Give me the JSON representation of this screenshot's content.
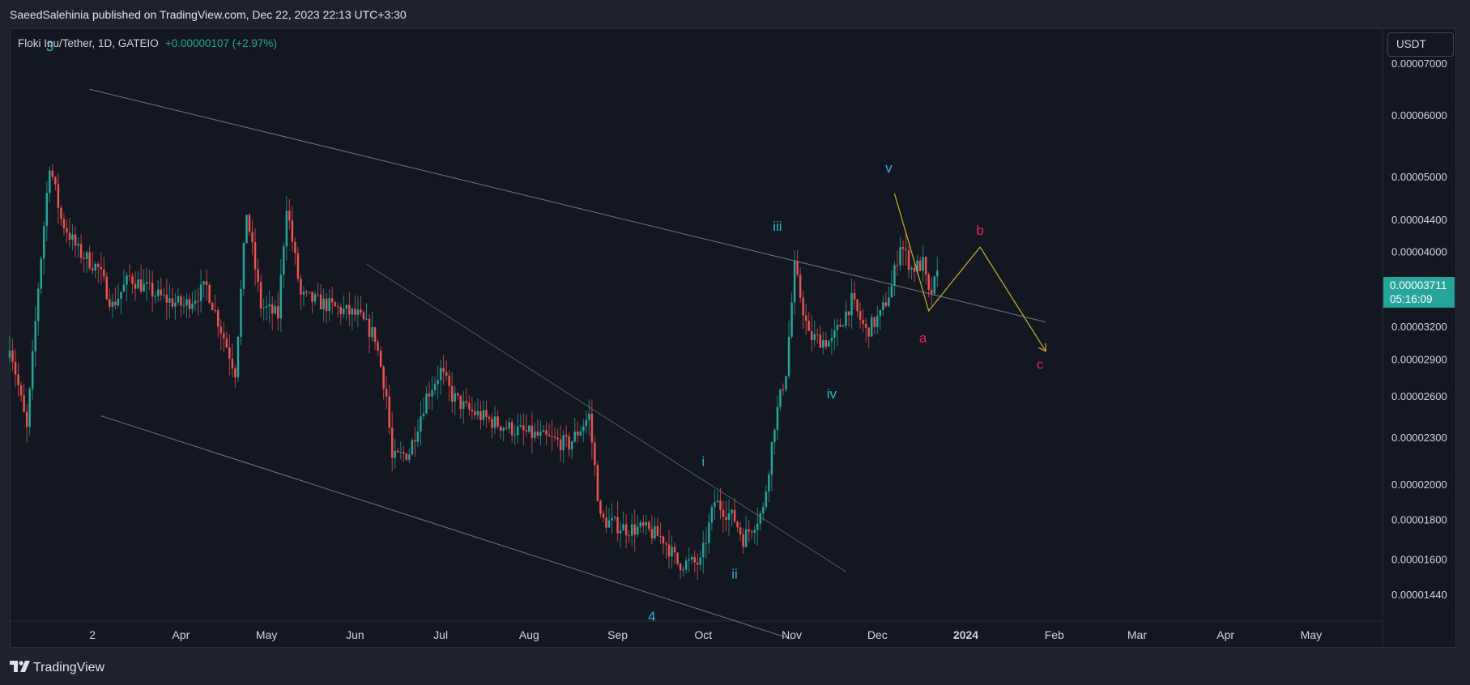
{
  "header": {
    "publisher_line": "SaeedSalehinia published on TradingView.com, Dec 22, 2023 22:13 UTC+3:30"
  },
  "legend": {
    "symbol": "Floki Inu/Tether, 1D, GATEIO",
    "change": "+0.00000107 (+2.97%)"
  },
  "currency_button": "USDT",
  "last_price": {
    "value": "0.00003711",
    "countdown": "05:16:09"
  },
  "footer": {
    "brand": "TradingView"
  },
  "colors": {
    "background": "#131722",
    "up": "#26a69a",
    "down": "#ef5350",
    "wave_label": "#2fb5cf",
    "abc_label": "#e91e63",
    "projection": "#c9b12f",
    "trendline": "#9598a1"
  },
  "chart_data": {
    "type": "candlestick",
    "symbol": "Floki Inu/Tether",
    "interval": "1D",
    "exchange": "GATEIO",
    "scale": "log",
    "ylim": [
      1.33e-05,
      7.75e-05
    ],
    "y_ticks": [
      {
        "value": 7e-05,
        "label": "0.00007000"
      },
      {
        "value": 6e-05,
        "label": "0.00006000"
      },
      {
        "value": 5e-05,
        "label": "0.00005000"
      },
      {
        "value": 4.4e-05,
        "label": "0.00004400"
      },
      {
        "value": 4e-05,
        "label": "0.00004000"
      },
      {
        "value": 3.2e-05,
        "label": "0.00003200"
      },
      {
        "value": 2.9e-05,
        "label": "0.00002900"
      },
      {
        "value": 2.6e-05,
        "label": "0.00002600"
      },
      {
        "value": 2.3e-05,
        "label": "0.00002300"
      },
      {
        "value": 2e-05,
        "label": "0.00002000"
      },
      {
        "value": 1.8e-05,
        "label": "0.00001800"
      },
      {
        "value": 1.6e-05,
        "label": "0.00001600"
      },
      {
        "value": 1.44e-05,
        "label": "0.00001440"
      }
    ],
    "x_start": "2023-01-31",
    "x_end": "2024-05-26",
    "x_ticks": [
      {
        "date": "2023-03-01",
        "label": "2"
      },
      {
        "date": "2023-04-01",
        "label": "Apr"
      },
      {
        "date": "2023-05-01",
        "label": "May"
      },
      {
        "date": "2023-06-01",
        "label": "Jun"
      },
      {
        "date": "2023-07-01",
        "label": "Jul"
      },
      {
        "date": "2023-08-01",
        "label": "Aug"
      },
      {
        "date": "2023-09-01",
        "label": "Sep"
      },
      {
        "date": "2023-10-01",
        "label": "Oct"
      },
      {
        "date": "2023-11-01",
        "label": "Nov"
      },
      {
        "date": "2023-12-01",
        "label": "Dec"
      },
      {
        "date": "2024-01-01",
        "label": "2024",
        "bold": true
      },
      {
        "date": "2024-02-01",
        "label": "Feb"
      },
      {
        "date": "2024-03-01",
        "label": "Mar"
      },
      {
        "date": "2024-04-01",
        "label": "Apr"
      },
      {
        "date": "2024-05-01",
        "label": "May"
      }
    ],
    "series_keypoints": [
      [
        "2023-01-31",
        3.05e-05
      ],
      [
        "2023-02-06",
        2.35e-05
      ],
      [
        "2023-02-10",
        3.6e-05
      ],
      [
        "2023-02-14",
        5.2e-05
      ],
      [
        "2023-02-18",
        4.4e-05
      ],
      [
        "2023-02-24",
        4e-05
      ],
      [
        "2023-03-03",
        3.8e-05
      ],
      [
        "2023-03-08",
        3.4e-05
      ],
      [
        "2023-03-14",
        3.7e-05
      ],
      [
        "2023-03-24",
        3.5e-05
      ],
      [
        "2023-04-02",
        3.4e-05
      ],
      [
        "2023-04-10",
        3.6e-05
      ],
      [
        "2023-04-20",
        2.8e-05
      ],
      [
        "2023-04-24",
        4.5e-05
      ],
      [
        "2023-04-29",
        3.4e-05
      ],
      [
        "2023-05-05",
        3.3e-05
      ],
      [
        "2023-05-08",
        4.6e-05
      ],
      [
        "2023-05-13",
        3.5e-05
      ],
      [
        "2023-05-23",
        3.4e-05
      ],
      [
        "2023-06-02",
        3.3e-05
      ],
      [
        "2023-06-08",
        3.1e-05
      ],
      [
        "2023-06-12",
        2.6e-05
      ],
      [
        "2023-06-14",
        2.15e-05
      ],
      [
        "2023-06-20",
        2.2e-05
      ],
      [
        "2023-06-26",
        2.6e-05
      ],
      [
        "2023-07-01",
        2.8e-05
      ],
      [
        "2023-07-05",
        2.6e-05
      ],
      [
        "2023-07-10",
        2.5e-05
      ],
      [
        "2023-07-20",
        2.4e-05
      ],
      [
        "2023-07-27",
        2.35e-05
      ],
      [
        "2023-08-05",
        2.3e-05
      ],
      [
        "2023-08-15",
        2.25e-05
      ],
      [
        "2023-08-22",
        2.45e-05
      ],
      [
        "2023-08-26",
        1.8e-05
      ],
      [
        "2023-09-04",
        1.75e-05
      ],
      [
        "2023-09-10",
        1.75e-05
      ],
      [
        "2023-09-17",
        1.7e-05
      ],
      [
        "2023-09-22",
        1.58e-05
      ],
      [
        "2023-09-30",
        1.58e-05
      ],
      [
        "2023-10-05",
        1.9e-05
      ],
      [
        "2023-10-12",
        1.8e-05
      ],
      [
        "2023-10-15",
        1.7e-05
      ],
      [
        "2023-10-22",
        1.85e-05
      ],
      [
        "2023-10-26",
        2.4e-05
      ],
      [
        "2023-10-30",
        2.8e-05
      ],
      [
        "2023-11-02",
        3.8e-05
      ],
      [
        "2023-11-07",
        3.1e-05
      ],
      [
        "2023-11-15",
        3.05e-05
      ],
      [
        "2023-11-22",
        3.45e-05
      ],
      [
        "2023-11-27",
        3.15e-05
      ],
      [
        "2023-12-02",
        3.3e-05
      ],
      [
        "2023-12-06",
        3.6e-05
      ],
      [
        "2023-12-09",
        4.1e-05
      ],
      [
        "2023-12-13",
        3.8e-05
      ],
      [
        "2023-12-17",
        3.85e-05
      ],
      [
        "2023-12-19",
        3.5e-05
      ],
      [
        "2023-12-20",
        3.55e-05
      ],
      [
        "2023-12-22",
        3.71e-05
      ]
    ],
    "trendlines": [
      {
        "name": "upper-channel",
        "from": [
          "2023-02-28",
          6.48e-05
        ],
        "to": [
          "2024-01-29",
          3.24e-05
        ]
      },
      {
        "name": "lower-channel",
        "from": [
          "2023-03-04",
          2.45e-05
        ],
        "to": [
          "2023-11-01",
          1.26e-05
        ]
      },
      {
        "name": "inner-trendline",
        "from": [
          "2023-06-05",
          3.85e-05
        ],
        "to": [
          "2023-11-20",
          1.54e-05
        ]
      }
    ],
    "projection_path": [
      [
        "2023-12-07",
        4.75e-05
      ],
      [
        "2023-12-19",
        3.35e-05
      ],
      [
        "2024-01-06",
        4.05e-05
      ],
      [
        "2024-01-29",
        2.97e-05
      ]
    ],
    "wave_labels": [
      {
        "text": "3",
        "date": "2023-02-14",
        "price": 7.26e-05,
        "color": "wave"
      },
      {
        "text": "4",
        "date": "2023-09-13",
        "price": 1.33e-05,
        "color": "wave"
      },
      {
        "text": "i",
        "date": "2023-10-01",
        "price": 2.11e-05,
        "color": "wave"
      },
      {
        "text": "ii",
        "date": "2023-10-12",
        "price": 1.51e-05,
        "color": "wave"
      },
      {
        "text": "iii",
        "date": "2023-10-27",
        "price": 4.25e-05,
        "color": "wave"
      },
      {
        "text": "iv",
        "date": "2023-11-15",
        "price": 2.58e-05,
        "color": "wave"
      },
      {
        "text": "v",
        "date": "2023-12-05",
        "price": 5.06e-05,
        "color": "wave"
      },
      {
        "text": "a",
        "date": "2023-12-17",
        "price": 3.05e-05,
        "color": "abc"
      },
      {
        "text": "b",
        "date": "2024-01-06",
        "price": 4.2e-05,
        "color": "abc"
      },
      {
        "text": "c",
        "date": "2024-01-27",
        "price": 2.82e-05,
        "color": "abc"
      }
    ]
  }
}
